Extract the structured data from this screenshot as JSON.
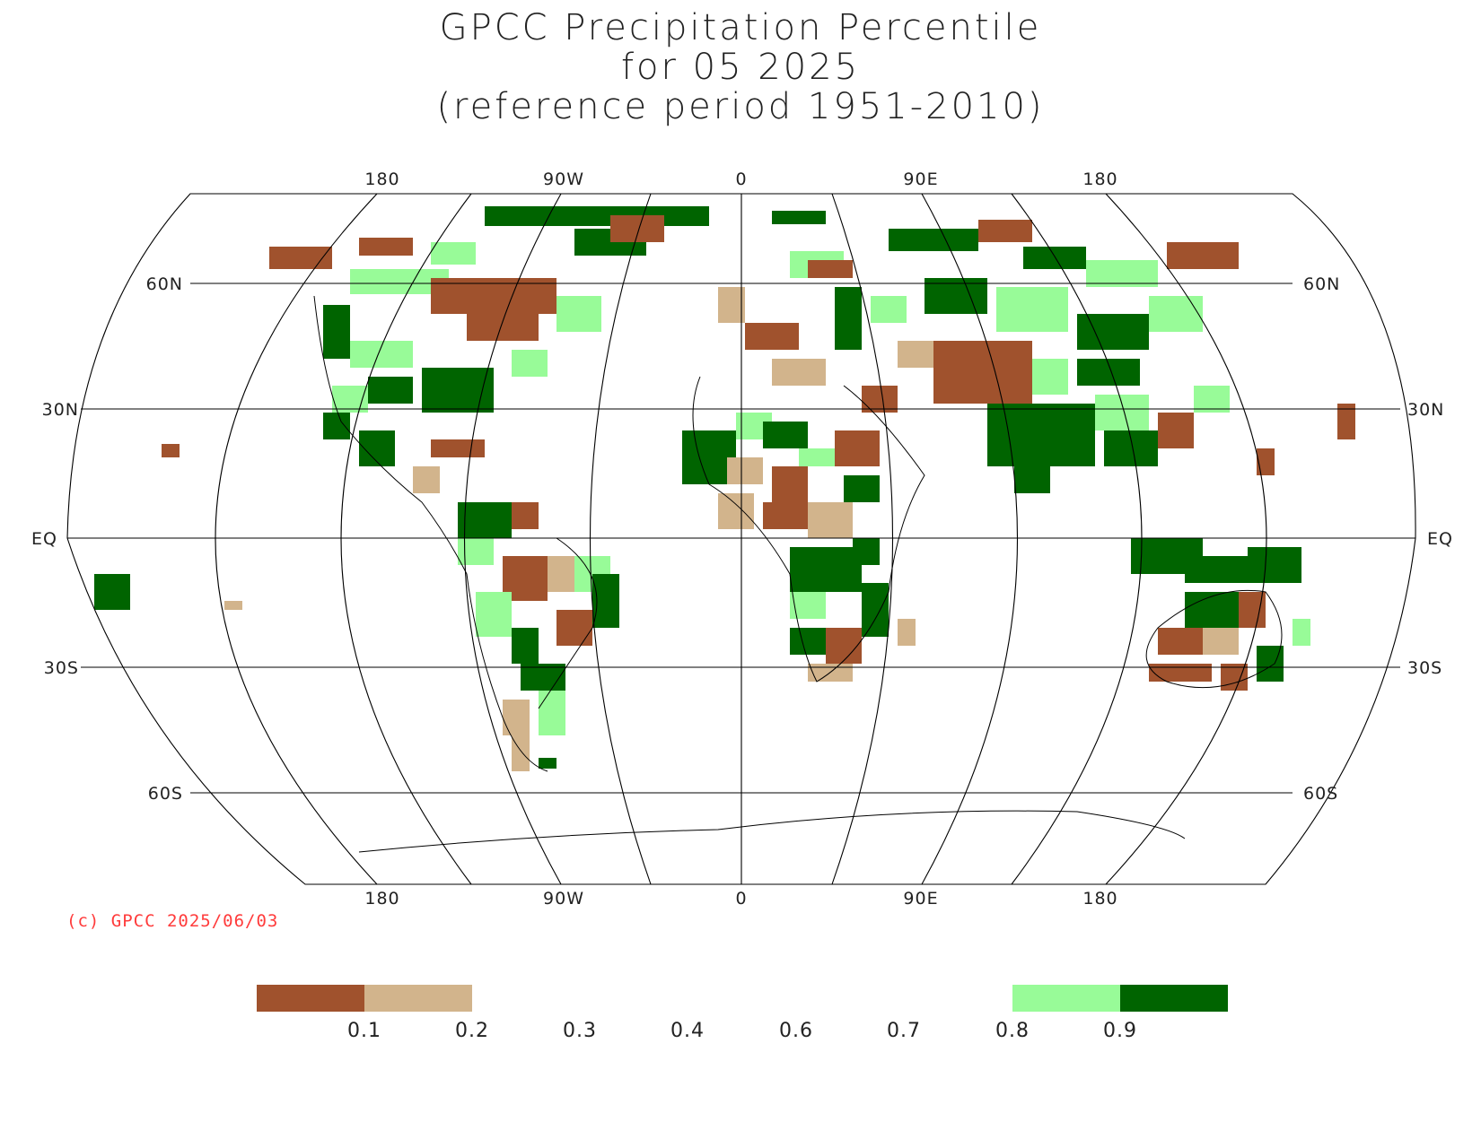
{
  "title": {
    "line1": "GPCC Precipitation Percentile",
    "line2": "for 05 2025",
    "line3": "(reference period 1951-2010)"
  },
  "map": {
    "projection": "Robinson-like global",
    "lon_labels_top": [
      "180",
      "90W",
      "0",
      "90E",
      "180"
    ],
    "lon_labels_bottom": [
      "180",
      "90W",
      "0",
      "90E",
      "180"
    ],
    "lat_labels_left": [
      "60N",
      "30N",
      "EQ",
      "30S",
      "60S"
    ],
    "lat_labels_right": [
      "60N",
      "30N",
      "EQ",
      "30S",
      "60S"
    ]
  },
  "copyright": "(c) GPCC 2025/06/03",
  "legend": {
    "tick_labels": [
      "0.1",
      "0.2",
      "0.3",
      "0.4",
      "0.6",
      "0.7",
      "0.8",
      "0.9"
    ],
    "swatches": [
      {
        "name": "below-0.1",
        "color": "#a0522d"
      },
      {
        "name": "0.1-0.2",
        "color": "#d2b48c"
      },
      {
        "name": "0.8-0.9",
        "color": "#98fb98"
      },
      {
        "name": "above-0.9",
        "color": "#006400"
      }
    ]
  },
  "colors": {
    "dry_extreme": "#a0522d",
    "dry": "#d2b48c",
    "wet": "#98fb98",
    "wet_extreme": "#006400"
  }
}
